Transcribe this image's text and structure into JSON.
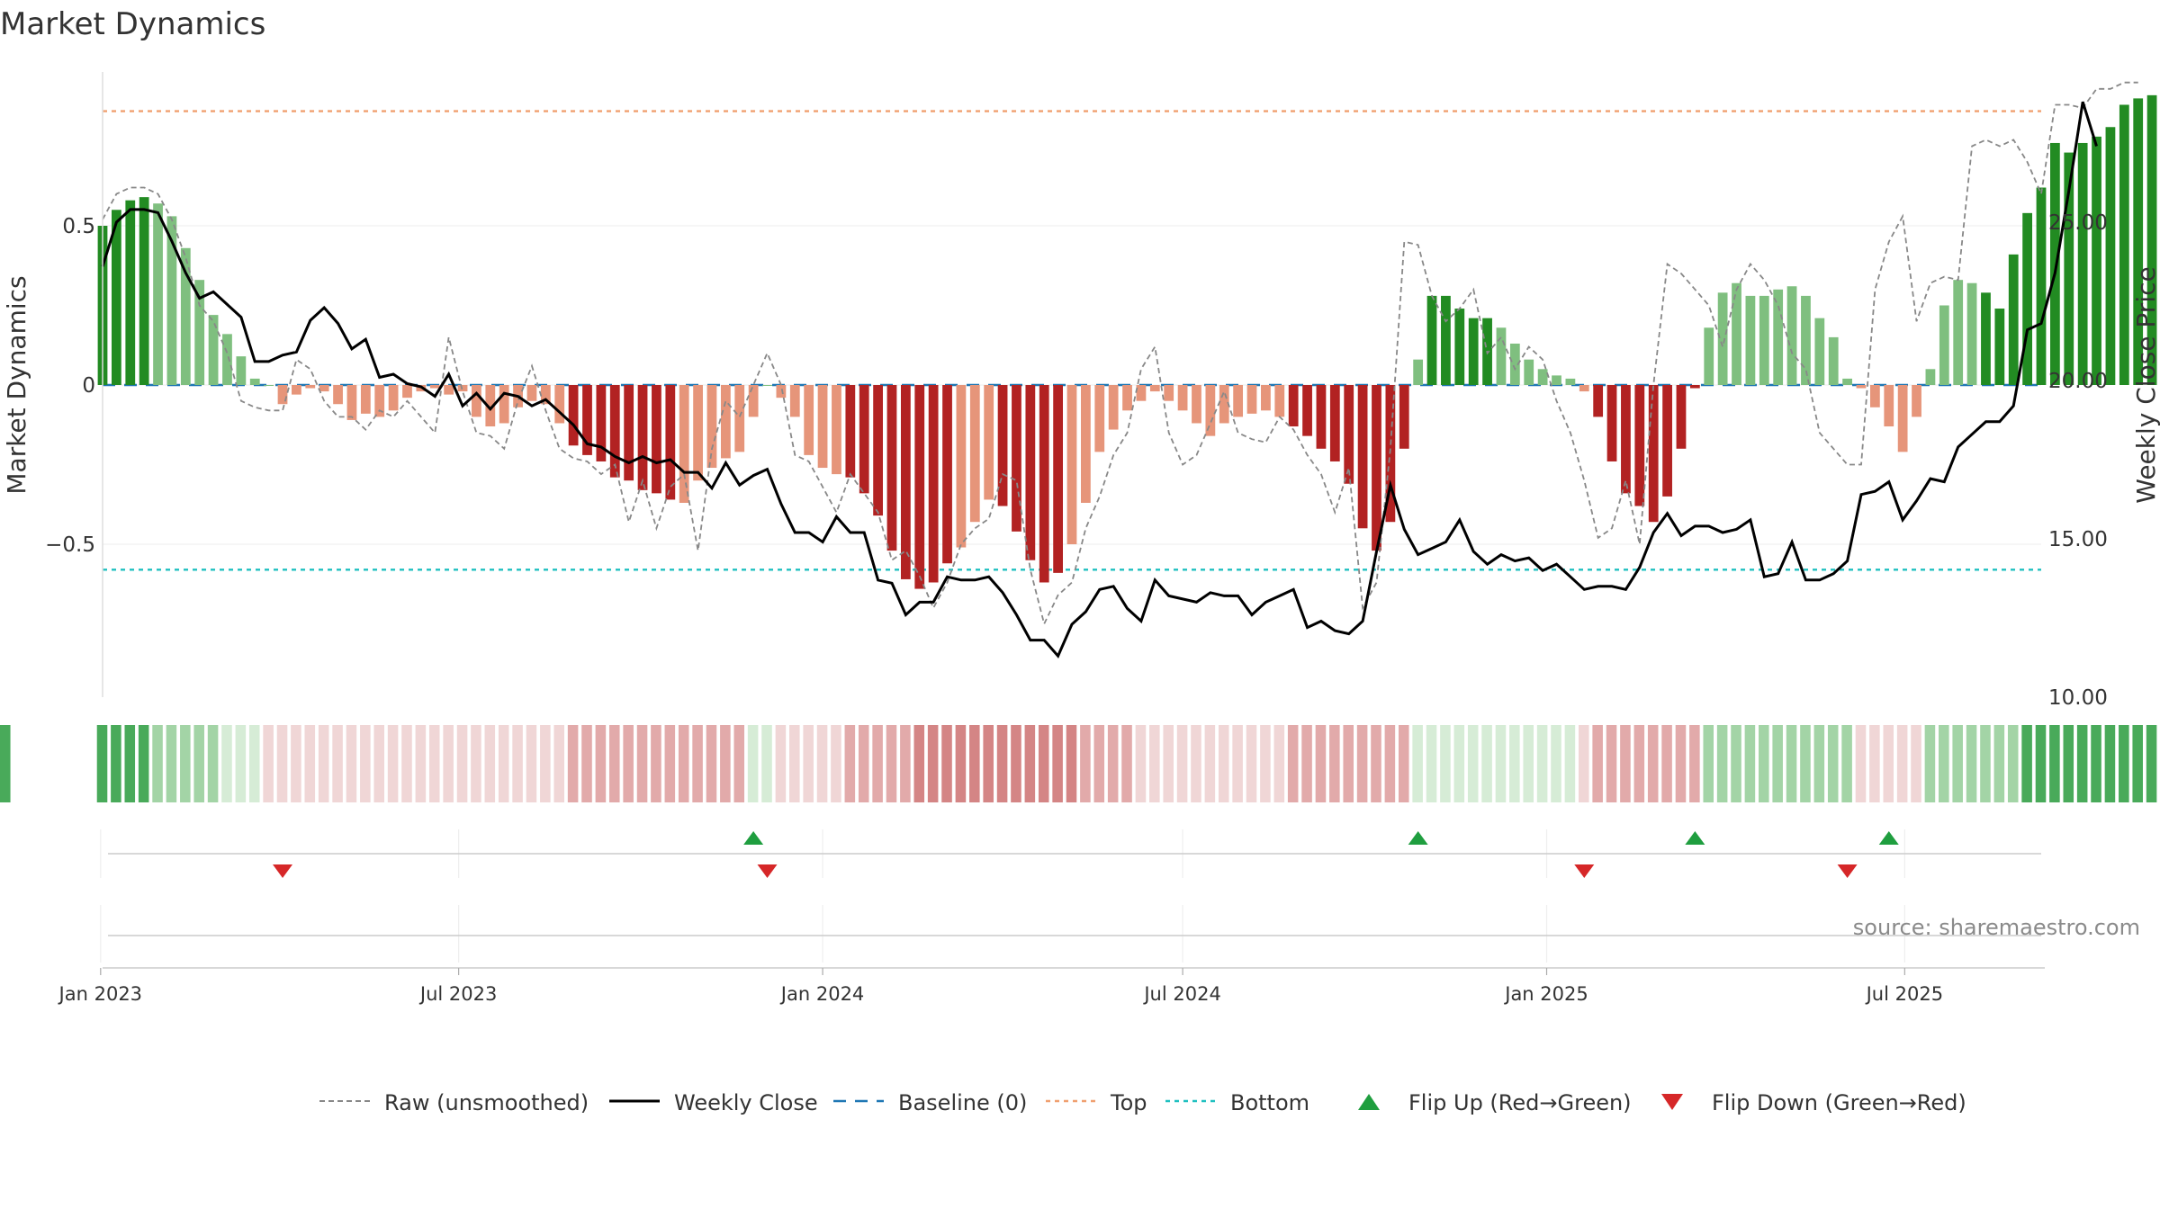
{
  "chart_data": {
    "type": "bar",
    "title": "Market Dynamics",
    "ylabel": "Market Dynamics",
    "y2label": "Weekly Close Price",
    "source": "source: sharemaestro.com",
    "date_start": "2023-01-02",
    "date_end": "2025-09-08",
    "ylim": [
      -0.98,
      0.98
    ],
    "y2lim": [
      10,
      29.9
    ],
    "yticks": [
      {
        "value": 0.5,
        "label": "0.5"
      },
      {
        "value": 0,
        "label": "0"
      },
      {
        "value": -0.5,
        "label": "−0.5"
      }
    ],
    "y2ticks": [
      {
        "value": 25,
        "label": "25.00"
      },
      {
        "value": 20,
        "label": "20.00"
      },
      {
        "value": 15,
        "label": "15.00"
      },
      {
        "value": 10,
        "label": "10.00"
      }
    ],
    "xticks": [
      {
        "date": "2023-01-01",
        "label": "Jan 2023"
      },
      {
        "date": "2023-07-01",
        "label": "Jul 2023"
      },
      {
        "date": "2024-01-01",
        "label": "Jan 2024"
      },
      {
        "date": "2024-07-01",
        "label": "Jul 2024"
      },
      {
        "date": "2025-01-01",
        "label": "Jan 2025"
      },
      {
        "date": "2025-07-01",
        "label": "Jul 2025"
      }
    ],
    "top_level": 0.86,
    "bottom_level": -0.58,
    "baseline": 0,
    "smoothed": [
      0.5,
      0.55,
      0.58,
      0.59,
      0.57,
      0.53,
      0.43,
      0.33,
      0.22,
      0.16,
      0.09,
      0.02,
      0,
      -0.06,
      -0.03,
      -0.01,
      -0.02,
      -0.06,
      -0.11,
      -0.09,
      -0.1,
      -0.08,
      -0.04,
      -0.02,
      -0.01,
      -0.03,
      -0.02,
      -0.1,
      -0.13,
      -0.12,
      -0.07,
      -0.05,
      -0.06,
      -0.12,
      -0.19,
      -0.22,
      -0.24,
      -0.29,
      -0.3,
      -0.33,
      -0.34,
      -0.36,
      -0.37,
      -0.3,
      -0.26,
      -0.23,
      -0.21,
      -0.1,
      0,
      -0.04,
      -0.1,
      -0.22,
      -0.26,
      -0.28,
      -0.29,
      -0.34,
      -0.41,
      -0.52,
      -0.61,
      -0.64,
      -0.62,
      -0.56,
      -0.51,
      -0.43,
      -0.36,
      -0.38,
      -0.46,
      -0.55,
      -0.62,
      -0.59,
      -0.5,
      -0.37,
      -0.21,
      -0.14,
      -0.08,
      -0.05,
      -0.02,
      -0.05,
      -0.08,
      -0.12,
      -0.16,
      -0.12,
      -0.1,
      -0.09,
      -0.08,
      -0.1,
      -0.13,
      -0.16,
      -0.2,
      -0.24,
      -0.31,
      -0.45,
      -0.52,
      -0.43,
      -0.2,
      0.08,
      0.28,
      0.28,
      0.24,
      0.21,
      0.21,
      0.18,
      0.13,
      0.08,
      0.05,
      0.03,
      0.02,
      -0.02,
      -0.1,
      -0.24,
      -0.34,
      -0.38,
      -0.43,
      -0.35,
      -0.2,
      -0.01,
      0.18,
      0.29,
      0.32,
      0.28,
      0.28,
      0.3,
      0.31,
      0.28,
      0.21,
      0.15,
      0.02,
      -0.01,
      -0.07,
      -0.13,
      -0.21,
      -0.1,
      0.05,
      0.25,
      0.33,
      0.32,
      0.29,
      0.24,
      0.41,
      0.54,
      0.62,
      0.76,
      0.73,
      0.76,
      0.78,
      0.81,
      0.88,
      0.9,
      0.91
    ],
    "raw": [
      0.52,
      0.6,
      0.62,
      0.62,
      0.6,
      0.52,
      0.4,
      0.25,
      0.2,
      0.1,
      -0.05,
      -0.07,
      -0.08,
      -0.08,
      0.08,
      0.05,
      -0.05,
      -0.1,
      -0.1,
      -0.14,
      -0.08,
      -0.1,
      -0.05,
      -0.1,
      -0.15,
      0.15,
      -0.02,
      -0.15,
      -0.16,
      -0.2,
      -0.05,
      0.06,
      -0.08,
      -0.2,
      -0.23,
      -0.24,
      -0.28,
      -0.25,
      -0.43,
      -0.3,
      -0.45,
      -0.32,
      -0.28,
      -0.52,
      -0.2,
      -0.05,
      -0.1,
      0,
      0.1,
      0,
      -0.22,
      -0.24,
      -0.32,
      -0.4,
      -0.28,
      -0.34,
      -0.4,
      -0.55,
      -0.52,
      -0.6,
      -0.7,
      -0.62,
      -0.5,
      -0.45,
      -0.42,
      -0.28,
      -0.3,
      -0.58,
      -0.75,
      -0.66,
      -0.62,
      -0.45,
      -0.35,
      -0.22,
      -0.15,
      0.05,
      0.12,
      -0.15,
      -0.25,
      -0.22,
      -0.12,
      -0.02,
      -0.15,
      -0.17,
      -0.18,
      -0.1,
      -0.14,
      -0.22,
      -0.28,
      -0.4,
      -0.26,
      -0.7,
      -0.62,
      -0.2,
      0.45,
      0.44,
      0.28,
      0.2,
      0.24,
      0.3,
      0.1,
      0.15,
      0.05,
      0.12,
      0.08,
      -0.05,
      -0.15,
      -0.3,
      -0.48,
      -0.45,
      -0.3,
      -0.5,
      0,
      0.38,
      0.35,
      0.3,
      0.25,
      0.12,
      0.3,
      0.38,
      0.33,
      0.25,
      0.1,
      0.05,
      -0.15,
      -0.2,
      -0.25,
      -0.25,
      0.3,
      0.45,
      0.53,
      0.2,
      0.32,
      0.34,
      0.33,
      0.75,
      0.77,
      0.75,
      0.77,
      0.7,
      0.6,
      0.88,
      0.88,
      0.87,
      0.93,
      0.93,
      0.95,
      0.95
    ],
    "weekly_close": [
      23.6,
      25.0,
      25.4,
      25.4,
      25.3,
      24.4,
      23.4,
      22.6,
      22.8,
      22.4,
      22.0,
      20.6,
      20.6,
      20.8,
      20.9,
      21.9,
      22.3,
      21.8,
      21.0,
      21.3,
      20.1,
      20.2,
      19.9,
      19.8,
      19.5,
      20.2,
      19.2,
      19.6,
      19.1,
      19.6,
      19.5,
      19.2,
      19.4,
      19.0,
      18.6,
      18.0,
      17.9,
      17.6,
      17.4,
      17.6,
      17.4,
      17.5,
      17.1,
      17.1,
      16.6,
      17.4,
      16.7,
      17.0,
      17.2,
      16.1,
      15.2,
      15.2,
      14.9,
      15.7,
      15.2,
      15.2,
      13.7,
      13.6,
      12.6,
      13.0,
      13.0,
      13.8,
      13.7,
      13.7,
      13.8,
      13.3,
      12.6,
      11.8,
      11.8,
      11.3,
      12.3,
      12.7,
      13.4,
      13.5,
      12.8,
      12.4,
      13.7,
      13.2,
      13.1,
      13.0,
      13.3,
      13.2,
      13.2,
      12.6,
      13.0,
      13.2,
      13.4,
      12.2,
      12.4,
      12.1,
      12.0,
      12.4,
      14.6,
      16.7,
      15.3,
      14.5,
      14.7,
      14.9,
      15.6,
      14.6,
      14.2,
      14.5,
      14.3,
      14.4,
      14.0,
      14.2,
      13.8,
      13.4,
      13.5,
      13.5,
      13.4,
      14.1,
      15.2,
      15.8,
      15.1,
      15.4,
      15.4,
      15.2,
      15.3,
      15.6,
      13.8,
      13.9,
      14.9,
      13.7,
      13.7,
      13.9,
      14.3,
      16.4,
      16.5,
      16.8,
      15.6,
      16.2,
      16.9,
      16.8,
      17.9,
      18.3,
      18.7,
      18.7,
      19.2,
      21.6,
      21.8,
      23.4,
      26.0,
      28.8,
      27.4
    ],
    "states": [
      "G2",
      "G2",
      "G2",
      "G2",
      "G1",
      "G1",
      "G1",
      "G1",
      "G1",
      "G0",
      "G0",
      "G0",
      "R0",
      "R0",
      "R0",
      "R0",
      "R0",
      "R0",
      "R0",
      "R0",
      "R0",
      "R0",
      "R0",
      "R0",
      "R0",
      "R0",
      "R0",
      "R0",
      "R0",
      "R0",
      "R0",
      "R0",
      "R0",
      "R0",
      "R1",
      "R1",
      "R1",
      "R1",
      "R1",
      "R1",
      "R1",
      "R1",
      "R1",
      "R1",
      "R1",
      "R1",
      "R1",
      "G0",
      "G0",
      "R0",
      "R0",
      "R0",
      "R0",
      "R0",
      "R1",
      "R1",
      "R1",
      "R1",
      "R1",
      "R2",
      "R2",
      "R2",
      "R2",
      "R2",
      "R2",
      "R2",
      "R2",
      "R2",
      "R2",
      "R2",
      "R2",
      "R1",
      "R1",
      "R1",
      "R1",
      "R0",
      "R0",
      "R0",
      "R0",
      "R0",
      "R0",
      "R0",
      "R0",
      "R0",
      "R0",
      "R0",
      "R1",
      "R1",
      "R1",
      "R1",
      "R1",
      "R1",
      "R1",
      "R1",
      "R1",
      "G0",
      "G0",
      "G0",
      "G0",
      "G0",
      "G0",
      "G0",
      "G0",
      "G0",
      "G0",
      "G0",
      "G0",
      "R0",
      "R1",
      "R1",
      "R1",
      "R1",
      "R1",
      "R1",
      "R1",
      "R1",
      "G1",
      "G1",
      "G1",
      "G1",
      "G1",
      "G1",
      "G1",
      "G1",
      "G1",
      "G1",
      "G1",
      "R0",
      "R0",
      "R0",
      "R0",
      "R0",
      "G1",
      "G1",
      "G1",
      "G1",
      "G1",
      "G1",
      "G1",
      "G2",
      "G2",
      "G2",
      "G2",
      "G2",
      "G2",
      "G2",
      "G2",
      "G2",
      "G2",
      "G2"
    ],
    "flip_up": [
      47,
      95,
      115,
      129
    ],
    "flip_down": [
      13,
      48,
      107,
      126
    ],
    "colors": {
      "positive_strong": "#228b22",
      "positive_weak": "#7fbf7f",
      "negative_strong": "#b22222",
      "negative_weak": "#e6957a",
      "raw_line": "#888888",
      "close_line": "#000000",
      "baseline": "#1f77b4",
      "top": "#f0a070",
      "bottom": "#20c0c0",
      "flip_up": "#1f9e3f",
      "flip_down": "#d62728",
      "state_strip": {
        "G0": "#d6ecd6",
        "G1": "#a3d4a6",
        "G2": "#49aa5a",
        "R0": "#f0d6d6",
        "R1": "#e2aaaa",
        "R2": "#d48585"
      }
    },
    "legend": [
      {
        "key": "raw",
        "label": "Raw (unsmoothed)"
      },
      {
        "key": "close",
        "label": "Weekly Close"
      },
      {
        "key": "baseline",
        "label": "Baseline (0)"
      },
      {
        "key": "top",
        "label": "Top"
      },
      {
        "key": "bottom",
        "label": "Bottom"
      },
      {
        "key": "flip_up",
        "label": "Flip Up (Red→Green)"
      },
      {
        "key": "flip_down",
        "label": "Flip Down (Green→Red)"
      }
    ]
  }
}
